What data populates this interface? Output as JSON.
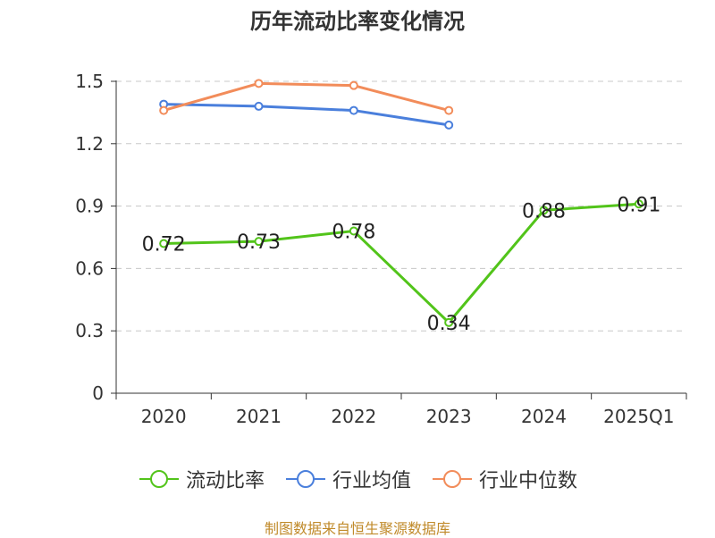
{
  "chart_data": {
    "type": "line",
    "title": "历年流动比率变化情况",
    "categories": [
      "2020",
      "2021",
      "2022",
      "2023",
      "2024",
      "2025Q1"
    ],
    "ylim": [
      0,
      1.5
    ],
    "yticks": [
      "0",
      "0.3",
      "0.6",
      "0.9",
      "1.2",
      "1.5"
    ],
    "grid": true,
    "legend_position": "bottom",
    "series": [
      {
        "name": "流动比率",
        "color": "#52c41a",
        "values": [
          0.72,
          0.73,
          0.78,
          0.34,
          0.88,
          0.91
        ],
        "labels": [
          "0.72",
          "0.73",
          "0.78",
          "0.34",
          "0.88",
          "0.91"
        ]
      },
      {
        "name": "行业均值",
        "color": "#4a7fdc",
        "values": [
          1.39,
          1.38,
          1.36,
          1.29,
          null,
          null
        ]
      },
      {
        "name": "行业中位数",
        "color": "#f28c5a",
        "values": [
          1.36,
          1.49,
          1.48,
          1.36,
          null,
          null
        ]
      }
    ]
  },
  "footer": {
    "source": "制图数据来自恒生聚源数据库"
  }
}
